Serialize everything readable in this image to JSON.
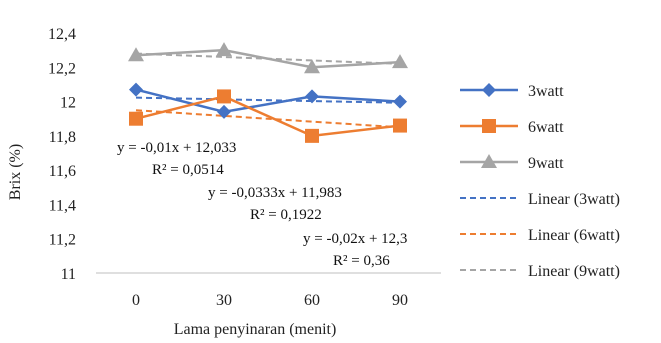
{
  "chart_data": {
    "type": "line",
    "x": [
      0,
      30,
      60,
      90
    ],
    "xlabel": "Lama  penyinaran (menit)",
    "ylabel": "Brix  (%)",
    "ylim": [
      11,
      12.4
    ],
    "yticks": [
      "11",
      "11,2",
      "11,4",
      "11,6",
      "11,8",
      "12",
      "12,2",
      "12,4"
    ],
    "xticks": [
      "0",
      "30",
      "60",
      "90"
    ],
    "grid": false,
    "legend_position": "right",
    "series": [
      {
        "name": "3watt",
        "values": [
          12.07,
          11.94,
          12.03,
          12.0
        ],
        "color": "#4472C4",
        "marker": "diamond"
      },
      {
        "name": "6watt",
        "values": [
          11.9,
          12.03,
          11.8,
          11.86
        ],
        "color": "#ED7D31",
        "marker": "square"
      },
      {
        "name": "9watt",
        "values": [
          12.27,
          12.3,
          12.2,
          12.23
        ],
        "color": "#A5A5A5",
        "marker": "triangle"
      }
    ],
    "trendlines": [
      {
        "name": "Linear (3watt)",
        "slope": -0.01,
        "intercept": 12.033,
        "color": "#4472C4",
        "equation": "y = -0,01x   + 12,033",
        "r2": "R² = 0,0514"
      },
      {
        "name": "Linear (6watt)",
        "slope": -0.0333,
        "intercept": 11.983,
        "color": "#ED7D31",
        "equation": "y = -0,0333x   + 11,983",
        "r2": "R² = 0,1922"
      },
      {
        "name": "Linear (9watt)",
        "slope": -0.02,
        "intercept": 12.3,
        "color": "#A5A5A5",
        "equation": "y = -0,02x   + 12,3",
        "r2": "R² = 0,36"
      }
    ]
  }
}
